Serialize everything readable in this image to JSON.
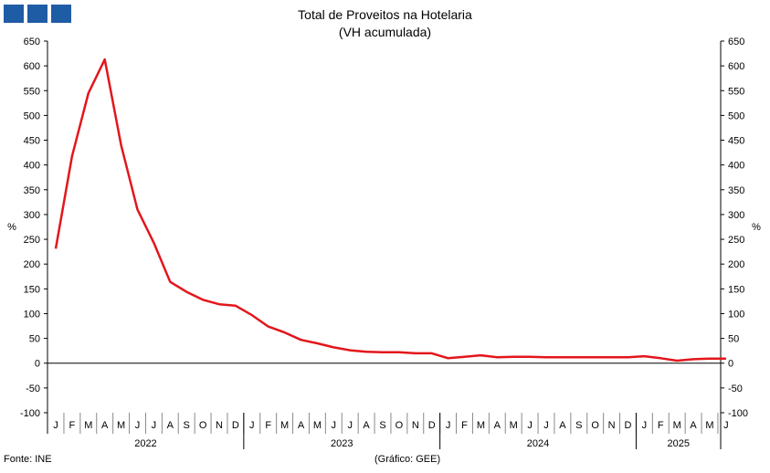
{
  "header": {
    "title": "Total de Proveitos na Hotelaria",
    "subtitle": "(VH acumulada)"
  },
  "footer": {
    "source": "Fonte: INE",
    "credit": "(Gráfico: GEE)"
  },
  "colors": {
    "line": "#e3161b",
    "logo": "#1f5ca6",
    "axis": "#000000"
  },
  "chart_data": {
    "type": "line",
    "title": "Total de Proveitos na Hotelaria",
    "subtitle": "(VH acumulada)",
    "ylabel": "%",
    "ylabel_right": "%",
    "ylim": [
      -100,
      650
    ],
    "yticks": [
      650,
      600,
      550,
      500,
      450,
      400,
      350,
      300,
      250,
      200,
      150,
      100,
      50,
      0,
      -50,
      -100
    ],
    "grid": false,
    "month_labels": [
      "J",
      "F",
      "M",
      "A",
      "M",
      "J",
      "J",
      "A",
      "S",
      "O",
      "N",
      "D",
      "J",
      "F",
      "M",
      "A",
      "M",
      "J",
      "J",
      "A",
      "S",
      "O",
      "N",
      "D",
      "J",
      "F",
      "M",
      "A",
      "M",
      "J",
      "J",
      "A",
      "S",
      "O",
      "N",
      "D",
      "J",
      "F",
      "M",
      "A",
      "M",
      "J"
    ],
    "years": [
      {
        "label": "2022",
        "months": 12
      },
      {
        "label": "2023",
        "months": 12
      },
      {
        "label": "2024",
        "months": 12
      },
      {
        "label": "2025",
        "months": 6
      }
    ],
    "series": [
      {
        "color": "#e3161b",
        "values": [
          231,
          418,
          545,
          613,
          440,
          310,
          243,
          164,
          144,
          128,
          119,
          116,
          97,
          74,
          62,
          47,
          40,
          32,
          26,
          23,
          22,
          22,
          20,
          20,
          10,
          13,
          16,
          12,
          13,
          13,
          12,
          12,
          12,
          12,
          12,
          12,
          14,
          10,
          5,
          8,
          9,
          9
        ]
      }
    ]
  }
}
